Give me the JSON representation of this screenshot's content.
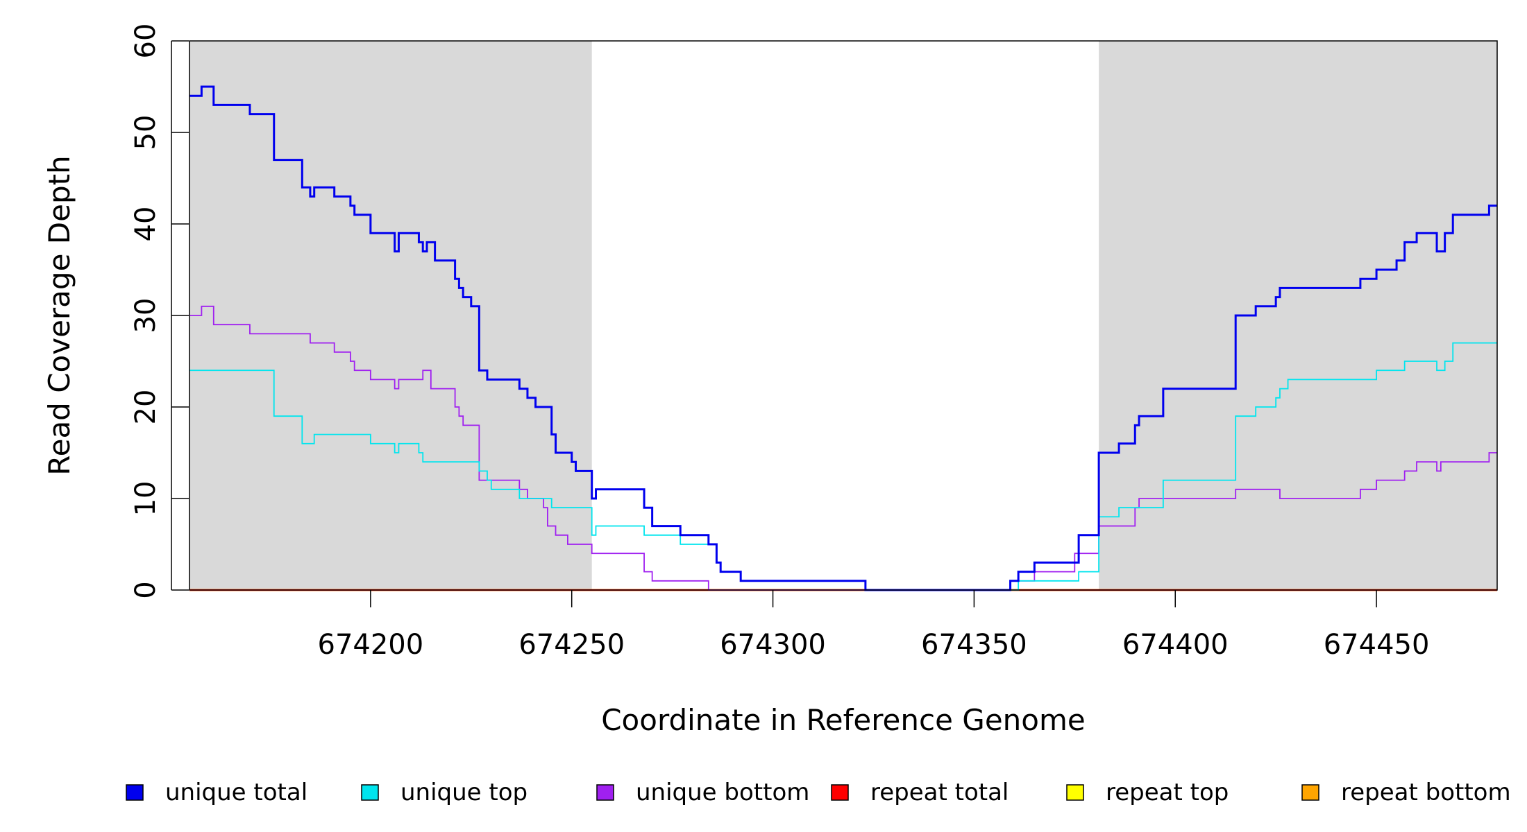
{
  "chart_data": {
    "type": "line",
    "xlabel": "Coordinate in Reference Genome",
    "ylabel": "Read Coverage Depth",
    "xlim": [
      674155,
      674480
    ],
    "ylim": [
      0,
      60
    ],
    "x_ticks": [
      674200,
      674250,
      674300,
      674350,
      674400,
      674450
    ],
    "x_tick_labels": [
      "674200",
      "674250",
      "674300",
      "674350",
      "674400",
      "674450"
    ],
    "y_ticks": [
      0,
      10,
      20,
      30,
      40,
      50,
      60
    ],
    "y_tick_labels": [
      "0",
      "10",
      "20",
      "30",
      "40",
      "50",
      "60"
    ],
    "shaded_regions": [
      [
        674155,
        674255
      ],
      [
        674381,
        674480
      ]
    ],
    "grid": false,
    "legend_position": "bottom",
    "series": [
      {
        "name": "unique total",
        "color": "#0000ee",
        "x": [
          674155,
          674158,
          674161,
          674165,
          674170,
          674176,
          674183,
          674185,
          674186,
          674187,
          674191,
          674195,
          674196,
          674200,
          674206,
          674207,
          674212,
          674213,
          674214,
          674216,
          674221,
          674222,
          674223,
          674225,
          674227,
          674229,
          674230,
          674237,
          674239,
          674241,
          674245,
          674246,
          674250,
          674251,
          674255,
          674256,
          674268,
          674270,
          674277,
          674284,
          674286,
          674287,
          674292,
          674323,
          674359,
          674361,
          674365,
          674376,
          674381,
          674386,
          674390,
          674391,
          674397,
          674415,
          674420,
          674425,
          674426,
          674428,
          674440,
          674446,
          674450,
          674455,
          674457,
          674460,
          674465,
          674467,
          674469,
          674478,
          674480
        ],
        "y": [
          54,
          55,
          53,
          53,
          52,
          47,
          44,
          43,
          44,
          44,
          43,
          42,
          41,
          39,
          37,
          39,
          38,
          37,
          38,
          36,
          34,
          33,
          32,
          31,
          24,
          23,
          23,
          22,
          21,
          20,
          17,
          15,
          14,
          13,
          10,
          11,
          9,
          7,
          6,
          5,
          3,
          2,
          1,
          0,
          1,
          2,
          3,
          6,
          15,
          16,
          18,
          19,
          22,
          30,
          31,
          32,
          33,
          33,
          33,
          34,
          35,
          36,
          38,
          39,
          37,
          39,
          41,
          42,
          42
        ]
      },
      {
        "name": "unique top",
        "color": "#00e5ee",
        "x": [
          674155,
          674176,
          674183,
          674186,
          674200,
          674206,
          674207,
          674212,
          674213,
          674227,
          674229,
          674230,
          674237,
          674241,
          674245,
          674255,
          674256,
          674268,
          674277,
          674284,
          674286,
          674287,
          674292,
          674323,
          674359,
          674361,
          674376,
          674381,
          674386,
          674390,
          674397,
          674415,
          674420,
          674425,
          674426,
          674428,
          674446,
          674450,
          674457,
          674465,
          674467,
          674469,
          674480
        ],
        "y": [
          24,
          19,
          16,
          17,
          16,
          15,
          16,
          15,
          14,
          13,
          12,
          11,
          10,
          10,
          9,
          6,
          7,
          6,
          5,
          5,
          3,
          2,
          1,
          0,
          0,
          1,
          2,
          8,
          9,
          9,
          12,
          19,
          20,
          21,
          22,
          23,
          23,
          24,
          25,
          24,
          25,
          27,
          27
        ]
      },
      {
        "name": "unique bottom",
        "color": "#a020f0",
        "x": [
          674155,
          674158,
          674161,
          674170,
          674185,
          674191,
          674195,
          674196,
          674200,
          674206,
          674207,
          674213,
          674215,
          674221,
          674222,
          674223,
          674227,
          674237,
          674239,
          674243,
          674244,
          674246,
          674249,
          674250,
          674255,
          674268,
          674270,
          674284,
          674359,
          674360,
          674365,
          674375,
          674381,
          674390,
          674391,
          674415,
          674426,
          674446,
          674450,
          674457,
          674460,
          674465,
          674466,
          674478,
          674480
        ],
        "y": [
          30,
          31,
          29,
          28,
          27,
          26,
          25,
          24,
          23,
          22,
          23,
          24,
          22,
          20,
          19,
          18,
          12,
          11,
          10,
          9,
          7,
          6,
          5,
          5,
          4,
          2,
          1,
          0,
          1,
          1,
          2,
          4,
          7,
          9,
          10,
          11,
          10,
          11,
          12,
          13,
          14,
          13,
          14,
          15,
          15
        ]
      },
      {
        "name": "repeat total",
        "color": "#ff0000",
        "x": [
          674155,
          674480
        ],
        "y": [
          0,
          0
        ]
      },
      {
        "name": "repeat top",
        "color": "#ffff00",
        "x": [
          674155,
          674480
        ],
        "y": [
          0,
          0
        ]
      },
      {
        "name": "repeat bottom",
        "color": "#ffa500",
        "x": [
          674155,
          674480
        ],
        "y": [
          0,
          0
        ]
      }
    ]
  }
}
